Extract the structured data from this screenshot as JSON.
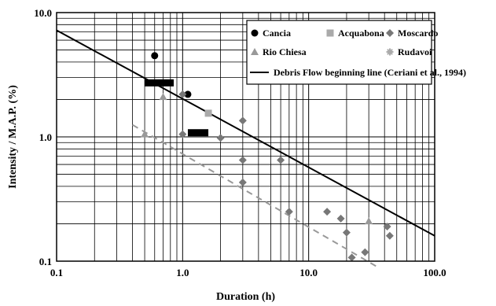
{
  "chart_data": {
    "type": "scatter",
    "title": "",
    "xlabel": "Duration  (h)",
    "ylabel": "Intensity / M.A.P.  (%)",
    "x_scale": "log",
    "y_scale": "log",
    "xlim": [
      0.1,
      100
    ],
    "ylim": [
      0.1,
      10
    ],
    "grid": true,
    "legend_position": "top-right",
    "x_ticks": [
      "0.1",
      "1.0",
      "10.0",
      "100.0"
    ],
    "y_ticks": [
      "10.0",
      "1.0",
      "0.1"
    ],
    "series": [
      {
        "name": "Cancia",
        "marker": "circle",
        "color": "#000000",
        "points": [
          [
            0.6,
            4.5
          ],
          [
            1.1,
            2.2
          ]
        ]
      },
      {
        "name": "Acquabona",
        "marker": "square",
        "color": "#aaaaaa",
        "points": [
          [
            1.6,
            1.55
          ]
        ],
        "bars": [
          {
            "x_from": 0.5,
            "x_to": 0.85,
            "y": 2.72
          },
          {
            "x_from": 1.1,
            "x_to": 1.6,
            "y": 1.08
          }
        ]
      },
      {
        "name": "Moscardo",
        "marker": "diamond",
        "color": "#777777",
        "points": [
          [
            1.0,
            2.2
          ],
          [
            1.0,
            1.05
          ],
          [
            2.0,
            0.98
          ],
          [
            3.0,
            1.35
          ],
          [
            3.0,
            0.65
          ],
          [
            3.0,
            0.43
          ],
          [
            6.0,
            0.65
          ],
          [
            7.0,
            0.25
          ],
          [
            14.0,
            0.25
          ],
          [
            18.0,
            0.22
          ],
          [
            20.0,
            0.17
          ],
          [
            22.0,
            0.107
          ],
          [
            28.0,
            0.118
          ],
          [
            42.0,
            0.19
          ],
          [
            44.0,
            0.16
          ]
        ]
      },
      {
        "name": "Rio Chiesa",
        "marker": "triangle",
        "color": "#999999",
        "points": [
          [
            0.5,
            1.05
          ],
          [
            0.7,
            2.1
          ],
          [
            30.0,
            0.21
          ]
        ]
      },
      {
        "name": "Rudavoi",
        "marker": "star",
        "color": "#aaaaaa",
        "points": []
      }
    ],
    "lines": [
      {
        "name": "Debris Flow beginning line (Ceriani et al., 1994)",
        "style": "solid",
        "color": "#000000",
        "from": [
          0.1,
          7.2
        ],
        "to": [
          100,
          0.16
        ]
      },
      {
        "name": "",
        "style": "dashed",
        "color": "#999999",
        "from": [
          0.4,
          1.25
        ],
        "to": [
          35,
          0.09
        ]
      }
    ]
  }
}
